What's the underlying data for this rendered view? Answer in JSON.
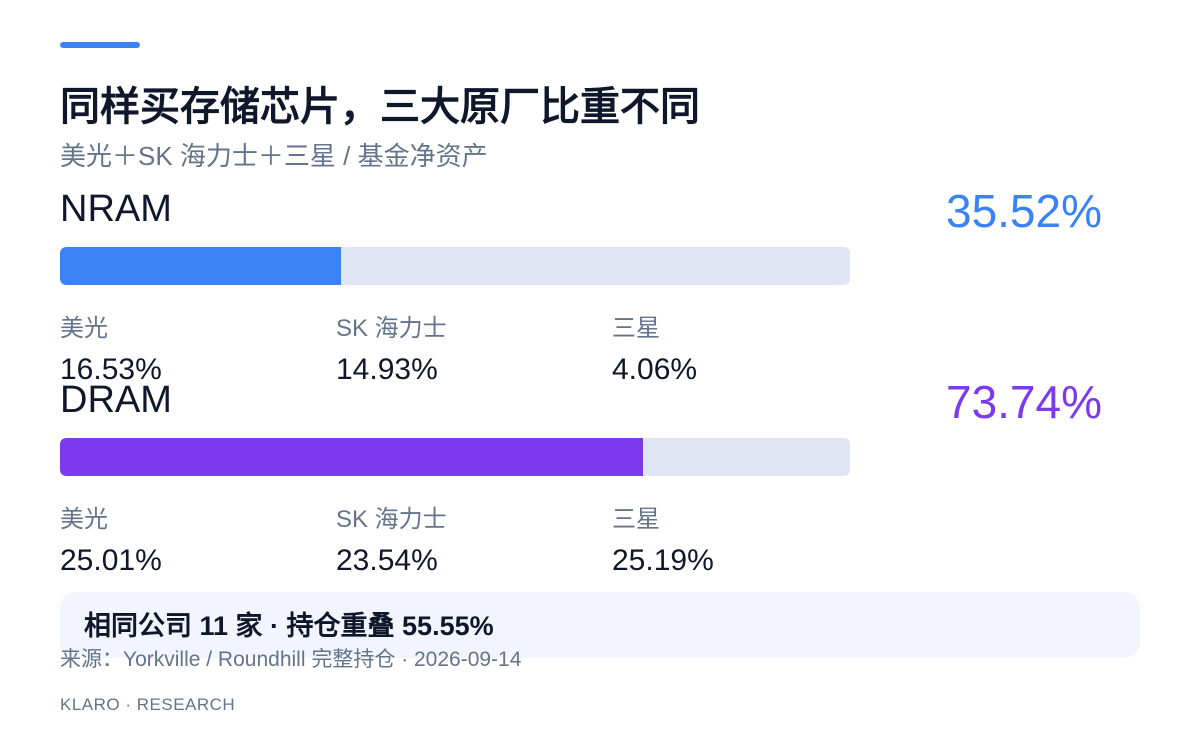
{
  "header": {
    "title": "同样买存储芯片，三大原厂比重不同",
    "subtitle": "美光＋SK 海力士＋三星 / 基金净资产"
  },
  "colors": {
    "accent": "#3b82f6",
    "nram": "#3b82f6",
    "dram": "#7c3aed",
    "track": "#dfe5f2"
  },
  "chart_data": {
    "type": "bar",
    "orientation": "horizontal",
    "bar_max": 100,
    "groups": [
      {
        "label": "NRAM",
        "total": 35.52,
        "total_label": "35.52%",
        "color": "#3b82f6",
        "breakdown": [
          {
            "name": "美光",
            "value": 16.53,
            "label": "16.53%"
          },
          {
            "name": "SK 海力士",
            "value": 14.93,
            "label": "14.93%"
          },
          {
            "name": "三星",
            "value": 4.06,
            "label": "4.06%"
          }
        ]
      },
      {
        "label": "DRAM",
        "total": 73.74,
        "total_label": "73.74%",
        "color": "#7c3aed",
        "breakdown": [
          {
            "name": "美光",
            "value": 25.01,
            "label": "25.01%"
          },
          {
            "name": "SK 海力士",
            "value": 23.54,
            "label": "23.54%"
          },
          {
            "name": "三星",
            "value": 25.19,
            "label": "25.19%"
          }
        ]
      }
    ]
  },
  "overlap": {
    "text": "相同公司 11 家 · 持仓重叠 55.55%"
  },
  "source": "来源：Yorkville / Roundhill 完整持仓 · 2026-09-14",
  "footer": "KLARO · RESEARCH"
}
